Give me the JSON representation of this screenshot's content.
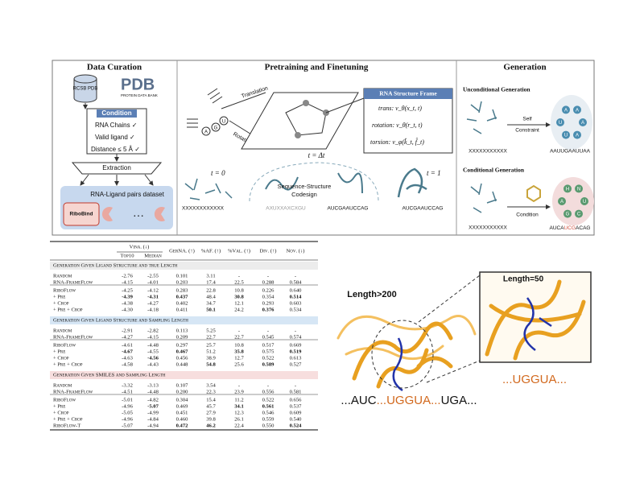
{
  "figure": {
    "data_curation": {
      "title": "Data Curation",
      "db_label": "RCSB PDB",
      "logo": "PDB",
      "logo_sub": "PROTEIN DATA BANK",
      "condition_title": "Condition",
      "conditions": [
        "RNA Chains ✓",
        "Valid ligand ✓",
        "Distance ≤ 5 Å ✓"
      ],
      "extraction": "Extraction",
      "dataset": "RNA-Ligand pairs dataset",
      "dataset_name": "RiboBind",
      "ellipsis": "…"
    },
    "pretraining": {
      "title": "Pretraining and Finetuning",
      "nucleotides": [
        "A",
        "G",
        "U"
      ],
      "translation": "Translation",
      "rotation": "Rotation",
      "frame_title": "RNA Structure Frame",
      "frame_lines": [
        "trans: v_θ(x_t, t)",
        "rotation: v_θ(r_t, t)",
        "torsion: v_φ(k̂_t, f̂_t)"
      ],
      "t0": "t = 0",
      "tdt": "t = Δt",
      "t1": "t = 1",
      "codesign": [
        "Sequence-Structure",
        "Codesign"
      ],
      "sequences": [
        "XXXXXXXXXXXX",
        "AXUXXAXCXGU",
        "AUCGAAUCCAG",
        "AUCGAAUCCAG"
      ]
    },
    "generation": {
      "title": "Generation",
      "unconditional": "Unconditional Generation",
      "self_constraint": [
        "Self",
        "Constraint"
      ],
      "uncond_in": "XXXXXXXXXXX",
      "uncond_out": "AAUUGAAUUAA",
      "uncond_nodes": [
        "A",
        "A",
        "U",
        "U",
        "A",
        "A"
      ],
      "conditional": "Conditional Generation",
      "condition": "Condition",
      "cond_in": "XXXXXXXXXXX",
      "cond_out": [
        "AUCA",
        "UCG",
        "ACAG"
      ],
      "cond_nodes": [
        "U",
        "C",
        "G",
        "A",
        "H",
        "N"
      ]
    },
    "table": {
      "header": {
        "vina": "Vina. (↓)",
        "top10": "Top10",
        "median": "Median",
        "cols": [
          "GerNA. (↑)",
          "%AF. (↑)",
          "%Val. (↑)",
          "Div. (↑)",
          "Nov. (↓)"
        ]
      },
      "sections": [
        {
          "title": "Generation Given Ligand Structure and true Length",
          "rows": [
            [
              "Random",
              "-2.76",
              "-2.55",
              "0.101",
              "3.11",
              "-",
              "-",
              "-"
            ],
            [
              "RNA-FrameFlow",
              "-4.15",
              "-4.01",
              "0.203",
              "17.4",
              "22.5",
              "0.288",
              "0.584"
            ],
            [
              "RiboFlow",
              "-4.25",
              "-4.12",
              "0.283",
              "22.8",
              "10.8",
              "0.226",
              "0.640"
            ],
            [
              "+ Pre",
              "-4.39",
              "-4.31",
              "0.437",
              "48.4",
              "30.8",
              "0.354",
              "0.514"
            ],
            [
              "+ Crop",
              "-4.38",
              "-4.27",
              "0.402",
              "34.7",
              "12.1",
              "0.293",
              "0.603"
            ],
            [
              "+ Pre + Crop",
              "-4.30",
              "-4.18",
              "0.411",
              "50.1",
              "24.2",
              "0.376",
              "0.534"
            ]
          ]
        },
        {
          "title": "Generation Given Ligand Structure and Sampling Length",
          "rows": [
            [
              "Random",
              "-2.91",
              "-2.82",
              "0.113",
              "5.25",
              "-",
              "-",
              "-"
            ],
            [
              "RNA-FrameFlow",
              "-4.27",
              "-4.15",
              "0.209",
              "22.7",
              "22.7",
              "0.545",
              "0.574"
            ],
            [
              "RiboFlow",
              "-4.61",
              "-4.48",
              "0.297",
              "25.7",
              "10.8",
              "0.517",
              "0.669"
            ],
            [
              "+ Pre",
              "-4.67",
              "-4.55",
              "0.467",
              "51.2",
              "35.8",
              "0.575",
              "0.519"
            ],
            [
              "+ Crop",
              "-4.63",
              "-4.56",
              "0.456",
              "38.9",
              "12.7",
              "0.522",
              "0.613"
            ],
            [
              "+ Pre + Crop",
              "-4.58",
              "-4.43",
              "0.448",
              "54.8",
              "25.6",
              "0.589",
              "0.527"
            ]
          ]
        },
        {
          "title": "Generation Given SMILES and Sampling Length",
          "rows": [
            [
              "Random",
              "-3.32",
              "-3.13",
              "0.107",
              "3.54",
              "-",
              "-",
              "-"
            ],
            [
              "RNA-FrameFlow",
              "-4.51",
              "-4.48",
              "0.200",
              "22.3",
              "23.9",
              "0.556",
              "0.581"
            ],
            [
              "RiboFlow",
              "-5.01",
              "-4.82",
              "0.304",
              "15.4",
              "11.2",
              "0.522",
              "0.656"
            ],
            [
              "+ Pre",
              "-4.96",
              "-5.07",
              "0.469",
              "45.7",
              "34.1",
              "0.561",
              "0.537"
            ],
            [
              "+ Crop",
              "-5.05",
              "-4.99",
              "0.451",
              "27.9",
              "12.3",
              "0.546",
              "0.609"
            ],
            [
              "+ Pre + Crop",
              "-4.96",
              "-4.84",
              "0.460",
              "39.8",
              "26.1",
              "0.559",
              "0.540"
            ],
            [
              "RiboFlow-T",
              "-5.07",
              "-4.94",
              "0.472",
              "46.2",
              "22.4",
              "0.550",
              "0.524"
            ]
          ]
        }
      ]
    },
    "structure": {
      "long_label": "Length>200",
      "short_label": "Length=50",
      "long_seq": [
        "...AUC",
        "...UGGUA...",
        "UGA..."
      ],
      "short_seq": "...UGGUA..."
    }
  }
}
